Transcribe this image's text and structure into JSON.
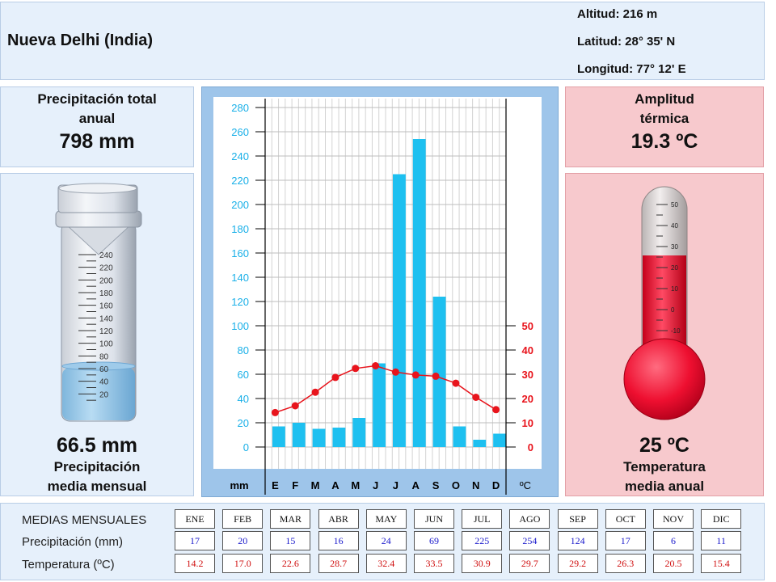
{
  "header": {
    "title": "Nueva Delhi (India)",
    "altitud": "Altitud: 216 m",
    "latitud": "Latitud: 28° 35' N",
    "longitud": "Longitud:  77° 12' E"
  },
  "precip_total": {
    "label_line1": "Precipitación total",
    "label_line2": "anual",
    "value": "798 mm"
  },
  "precip_mean": {
    "value": "66.5 mm",
    "label_line1": "Precipitación",
    "label_line2": "media mensual",
    "gauge_ticks": [
      "240",
      "220",
      "200",
      "180",
      "160",
      "140",
      "120",
      "100",
      "80",
      "60",
      "40",
      "20"
    ],
    "fill_mm": 66.5
  },
  "amplitude": {
    "label_line1": "Amplitud",
    "label_line2": "térmica",
    "value": "19.3 ºC"
  },
  "temperature": {
    "value": "25 ºC",
    "label_line1": "Temperatura",
    "label_line2": "media anual",
    "thermo_ticks": [
      "50",
      "40",
      "30",
      "20",
      "10",
      "0",
      "-10"
    ],
    "level_c": 25
  },
  "chart_data": {
    "type": "bar",
    "categories": [
      "E",
      "F",
      "M",
      "A",
      "M",
      "J",
      "J",
      "A",
      "S",
      "O",
      "N",
      "D"
    ],
    "series": [
      {
        "values": [
          17,
          20,
          15,
          16,
          24,
          69,
          225,
          254,
          124,
          17,
          6,
          11
        ],
        "axis": "left",
        "color": "#1ec0f0"
      },
      {
        "values": [
          14.2,
          17.0,
          22.6,
          28.7,
          32.4,
          33.5,
          30.9,
          29.7,
          29.2,
          26.3,
          20.5,
          15.4
        ],
        "type": "line",
        "axis": "right",
        "color": "#e8141c"
      }
    ],
    "left_axis": {
      "ticks": [
        "0",
        "20",
        "40",
        "60",
        "80",
        "100",
        "120",
        "140",
        "160",
        "180",
        "200",
        "220",
        "240",
        "260",
        "280"
      ],
      "range": [
        0,
        280
      ],
      "unit": "mm",
      "color": "#1ab0e8"
    },
    "right_axis": {
      "ticks": [
        "0",
        "10",
        "20",
        "30",
        "40",
        "50"
      ],
      "range": [
        0,
        140
      ],
      "unit": "ºC",
      "color": "#e8141c"
    },
    "grid": true
  },
  "table": {
    "title": "MEDIAS MENSUALES",
    "row_precip_label": "Precipitación (mm)",
    "row_temp_label": "Temperatura (ºC)",
    "months": [
      "ENE",
      "FEB",
      "MAR",
      "ABR",
      "MAY",
      "JUN",
      "JUL",
      "AGO",
      "SEP",
      "OCT",
      "NOV",
      "DIC"
    ],
    "precip": [
      "17",
      "20",
      "15",
      "16",
      "24",
      "69",
      "225",
      "254",
      "124",
      "17",
      "6",
      "11"
    ],
    "temp": [
      "14.2",
      "17.0",
      "22.6",
      "28.7",
      "32.4",
      "33.5",
      "30.9",
      "29.7",
      "29.2",
      "26.3",
      "20.5",
      "15.4"
    ]
  }
}
